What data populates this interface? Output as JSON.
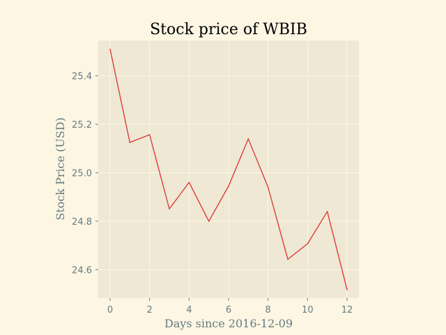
{
  "chart_data": {
    "type": "line",
    "title": "Stock price of WBIB",
    "xlabel": "Days since 2016-12-09",
    "ylabel": "Stock Price (USD)",
    "x": [
      0,
      1,
      2,
      3,
      4,
      5,
      6,
      7,
      8,
      9,
      10,
      11,
      12
    ],
    "series": [
      {
        "values": [
          25.51,
          25.125,
          25.157,
          24.851,
          24.96,
          24.8,
          24.945,
          25.14,
          24.94,
          24.643,
          24.707,
          24.84,
          24.518
        ],
        "color": "#dc322f"
      }
    ],
    "xlim": [
      -0.6,
      12.6
    ],
    "ylim": [
      24.483,
      25.546
    ],
    "xticks": [
      0,
      2,
      4,
      6,
      8,
      10,
      12
    ],
    "xtick_labels": [
      "0",
      "2",
      "4",
      "6",
      "8",
      "10",
      "12"
    ],
    "yticks": [
      24.6,
      24.8,
      25.0,
      25.2,
      25.4
    ],
    "ytick_labels": [
      "24.6",
      "24.8",
      "25.0",
      "25.2",
      "25.4"
    ],
    "grid": true,
    "legend": "none",
    "colors": {
      "figure_background": "#fdf6e3",
      "plot_background": "#eee8d5",
      "grid": "#fdf6e3",
      "text": "#657b83",
      "title": "#000000"
    }
  }
}
